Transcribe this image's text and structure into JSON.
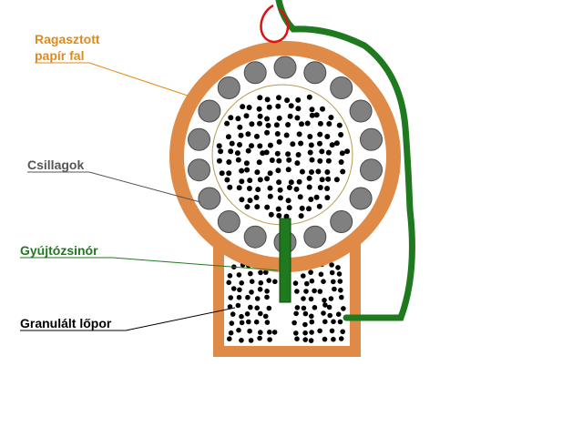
{
  "labels": {
    "wall": "Ragasztott\npapír fal",
    "stars": "Csillagok",
    "fuse": "Gyújtózsinór",
    "powder": "Granulált lőpor"
  },
  "colors": {
    "shell": "#e08a48",
    "fuse": "#1f7a1f",
    "fuse_dark": "#0a4a0a",
    "wall_label": "#e08a1c",
    "star_fill": "#808080",
    "star_stroke": "#4a4a4a",
    "powder": "#000000",
    "leader_wall": "#e08a1c",
    "leader_stars": "#555555",
    "leader_fuse": "#1f7a1f",
    "leader_powder": "#000000",
    "hook": "#e01010",
    "inner_ring": "#b89a50"
  }
}
